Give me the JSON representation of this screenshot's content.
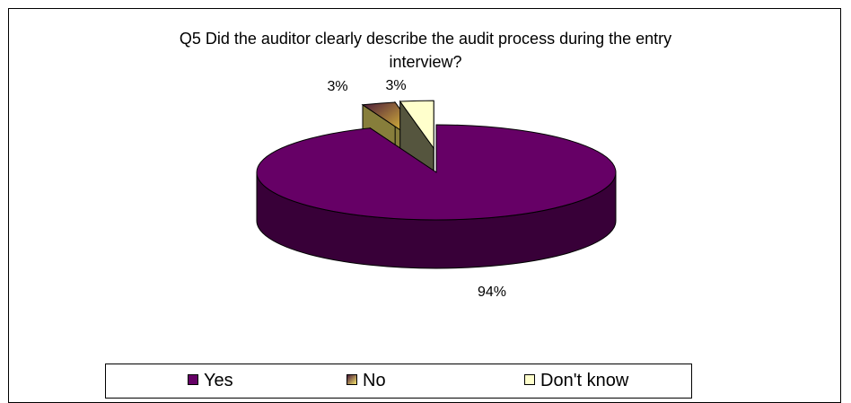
{
  "chart_data": {
    "type": "pie",
    "title": "Q5 Did the auditor clearly describe the audit process during the entry interview?",
    "title_lines": [
      "Q5 Did the auditor clearly describe the audit process during the entry",
      "interview?"
    ],
    "categories": [
      "Yes",
      "No",
      "Don't know"
    ],
    "values": [
      94,
      3,
      3
    ],
    "data_labels": [
      "94%",
      "3%",
      "3%"
    ],
    "colors": [
      "#660066",
      "#F5E56B",
      "#FFFFCC"
    ],
    "three_d": true,
    "exploded": [
      "No",
      "Don't know"
    ],
    "legend_position": "bottom"
  }
}
